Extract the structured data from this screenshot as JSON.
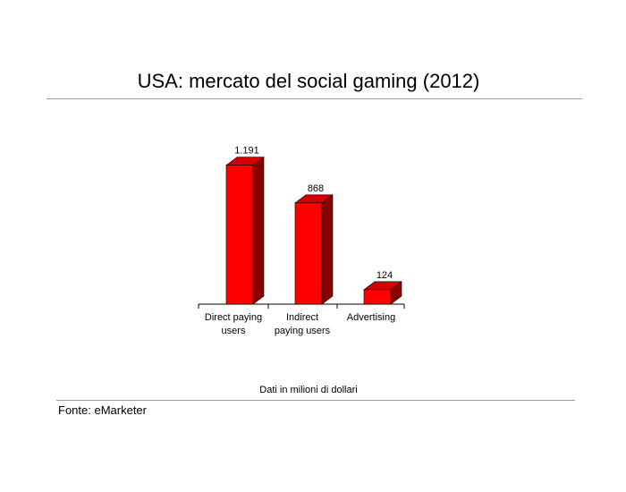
{
  "title": "USA: mercato del social gaming (2012)",
  "note": "Dati in milioni di dollari",
  "source": "Fonte: eMarketer",
  "colors": {
    "bar_front": "#ff0000",
    "bar_top": "#d40000",
    "bar_side": "#880000",
    "axis": "#000000",
    "rule": "#9a9a9a"
  },
  "chart_data": {
    "type": "bar",
    "categories": [
      [
        "Direct paying",
        "users"
      ],
      [
        "Indirect",
        "paying users"
      ],
      [
        "Advertising"
      ]
    ],
    "values": [
      1191,
      868,
      124
    ],
    "data_labels": [
      "1.191",
      "868",
      "124"
    ],
    "ylim": [
      0,
      1250
    ],
    "grid": false,
    "legend": "none",
    "style": "3d"
  }
}
